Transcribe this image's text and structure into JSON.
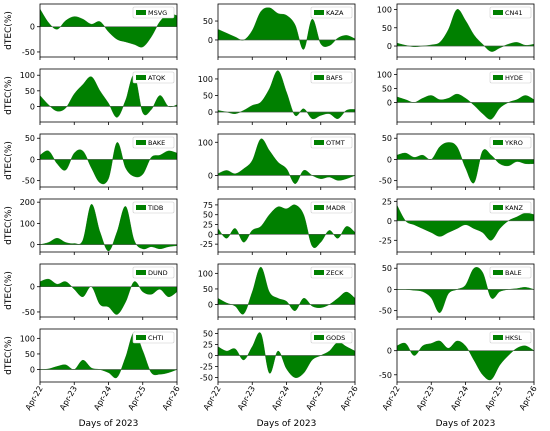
{
  "figure": {
    "xlabel": "Days of 2023",
    "ylabel": "dTEC(%)",
    "x_tick_labels": [
      "Apr-22",
      "Apr-23",
      "Apr-24",
      "Apr-25",
      "Apr-26"
    ],
    "fill_color": "#008000"
  },
  "chart_data": [
    {
      "type": "area",
      "station": "MSVG",
      "xlim": [
        "2023-04-22",
        "2023-04-26"
      ],
      "ylim": [
        -60,
        45
      ],
      "yticks": [
        -50,
        0
      ],
      "x": [
        "2023-04-22",
        "2023-04-22 06:00",
        "2023-04-22 12:00",
        "2023-04-22 18:00",
        "2023-04-23",
        "2023-04-23 06:00",
        "2023-04-23 12:00",
        "2023-04-23 18:00",
        "2023-04-24",
        "2023-04-24 06:00",
        "2023-04-24 12:00",
        "2023-04-24 18:00",
        "2023-04-25",
        "2023-04-25 06:00",
        "2023-04-25 12:00",
        "2023-04-25 18:00",
        "2023-04-26"
      ],
      "y": [
        35,
        8,
        -5,
        12,
        20,
        15,
        5,
        10,
        -10,
        -25,
        -30,
        -35,
        -40,
        -20,
        10,
        25,
        22
      ]
    },
    {
      "type": "area",
      "station": "KAZA",
      "xlim": [
        "2023-04-22",
        "2023-04-26"
      ],
      "ylim": [
        -45,
        95
      ],
      "yticks": [
        0,
        50
      ],
      "x": [
        "2023-04-22",
        "2023-04-22 06:00",
        "2023-04-22 12:00",
        "2023-04-22 18:00",
        "2023-04-23",
        "2023-04-23 06:00",
        "2023-04-23 12:00",
        "2023-04-23 18:00",
        "2023-04-24",
        "2023-04-24 06:00",
        "2023-04-24 12:00",
        "2023-04-24 18:00",
        "2023-04-25",
        "2023-04-25 06:00",
        "2023-04-25 12:00",
        "2023-04-25 18:00",
        "2023-04-26"
      ],
      "y": [
        28,
        18,
        8,
        0,
        25,
        75,
        85,
        70,
        65,
        40,
        -25,
        55,
        -10,
        -15,
        5,
        12,
        3
      ]
    },
    {
      "type": "area",
      "station": "CN41",
      "xlim": [
        "2023-04-22",
        "2023-04-26"
      ],
      "ylim": [
        -30,
        115
      ],
      "yticks": [
        0,
        50,
        100
      ],
      "x": [
        "2023-04-22",
        "2023-04-22 06:00",
        "2023-04-22 12:00",
        "2023-04-22 18:00",
        "2023-04-23",
        "2023-04-23 06:00",
        "2023-04-23 12:00",
        "2023-04-23 18:00",
        "2023-04-24",
        "2023-04-24 06:00",
        "2023-04-24 12:00",
        "2023-04-24 18:00",
        "2023-04-25",
        "2023-04-25 06:00",
        "2023-04-25 12:00",
        "2023-04-25 18:00",
        "2023-04-26"
      ],
      "y": [
        8,
        2,
        -2,
        0,
        3,
        10,
        45,
        100,
        70,
        30,
        5,
        -15,
        -5,
        5,
        10,
        2,
        5
      ]
    },
    {
      "type": "area",
      "station": "ATQK",
      "xlim": [
        "2023-04-22",
        "2023-04-26"
      ],
      "ylim": [
        -50,
        120
      ],
      "yticks": [
        0,
        50,
        100
      ],
      "x": [
        "2023-04-22",
        "2023-04-22 06:00",
        "2023-04-22 12:00",
        "2023-04-22 18:00",
        "2023-04-23",
        "2023-04-23 06:00",
        "2023-04-23 12:00",
        "2023-04-23 18:00",
        "2023-04-24",
        "2023-04-24 06:00",
        "2023-04-24 12:00",
        "2023-04-24 18:00",
        "2023-04-25",
        "2023-04-25 06:00",
        "2023-04-25 12:00",
        "2023-04-25 18:00",
        "2023-04-26"
      ],
      "y": [
        35,
        5,
        -15,
        -5,
        40,
        70,
        95,
        50,
        10,
        -35,
        20,
        100,
        -20,
        -10,
        35,
        0,
        5
      ]
    },
    {
      "type": "area",
      "station": "BAFS",
      "xlim": [
        "2023-04-22",
        "2023-04-26"
      ],
      "ylim": [
        -30,
        130
      ],
      "yticks": [
        0,
        50,
        100
      ],
      "x": [
        "2023-04-22",
        "2023-04-22 06:00",
        "2023-04-22 12:00",
        "2023-04-22 18:00",
        "2023-04-23",
        "2023-04-23 06:00",
        "2023-04-23 12:00",
        "2023-04-23 18:00",
        "2023-04-24",
        "2023-04-24 06:00",
        "2023-04-24 12:00",
        "2023-04-24 18:00",
        "2023-04-25",
        "2023-04-25 06:00",
        "2023-04-25 12:00",
        "2023-04-25 18:00",
        "2023-04-26"
      ],
      "y": [
        5,
        0,
        -5,
        5,
        20,
        30,
        70,
        125,
        60,
        -10,
        10,
        -20,
        -10,
        -5,
        -20,
        5,
        8
      ]
    },
    {
      "type": "area",
      "station": "HYDE",
      "xlim": [
        "2023-04-22",
        "2023-04-26"
      ],
      "ylim": [
        -70,
        120
      ],
      "yticks": [
        0,
        50,
        100
      ],
      "x": [
        "2023-04-22",
        "2023-04-22 06:00",
        "2023-04-22 12:00",
        "2023-04-22 18:00",
        "2023-04-23",
        "2023-04-23 06:00",
        "2023-04-23 12:00",
        "2023-04-23 18:00",
        "2023-04-24",
        "2023-04-24 06:00",
        "2023-04-24 12:00",
        "2023-04-24 18:00",
        "2023-04-25",
        "2023-04-25 06:00",
        "2023-04-25 12:00",
        "2023-04-25 18:00",
        "2023-04-26"
      ],
      "y": [
        20,
        10,
        0,
        15,
        25,
        10,
        15,
        30,
        15,
        -10,
        -40,
        -60,
        -20,
        0,
        10,
        25,
        10
      ]
    },
    {
      "type": "area",
      "station": "BAKE",
      "xlim": [
        "2023-04-22",
        "2023-04-26"
      ],
      "ylim": [
        -65,
        60
      ],
      "yticks": [
        -50,
        0,
        50
      ],
      "x": [
        "2023-04-22",
        "2023-04-22 06:00",
        "2023-04-22 12:00",
        "2023-04-22 18:00",
        "2023-04-23",
        "2023-04-23 06:00",
        "2023-04-23 12:00",
        "2023-04-23 18:00",
        "2023-04-24",
        "2023-04-24 06:00",
        "2023-04-24 12:00",
        "2023-04-24 18:00",
        "2023-04-25",
        "2023-04-25 06:00",
        "2023-04-25 12:00",
        "2023-04-25 18:00",
        "2023-04-26"
      ],
      "y": [
        10,
        20,
        -10,
        -25,
        15,
        20,
        -20,
        -55,
        -45,
        40,
        -20,
        -40,
        -35,
        5,
        10,
        20,
        15
      ]
    },
    {
      "type": "area",
      "station": "OTMT",
      "xlim": [
        "2023-04-22",
        "2023-04-26"
      ],
      "ylim": [
        -35,
        125
      ],
      "yticks": [
        0,
        100
      ],
      "x": [
        "2023-04-22",
        "2023-04-22 06:00",
        "2023-04-22 12:00",
        "2023-04-22 18:00",
        "2023-04-23",
        "2023-04-23 06:00",
        "2023-04-23 12:00",
        "2023-04-23 18:00",
        "2023-04-24",
        "2023-04-24 06:00",
        "2023-04-24 12:00",
        "2023-04-24 18:00",
        "2023-04-25",
        "2023-04-25 06:00",
        "2023-04-25 12:00",
        "2023-04-25 18:00",
        "2023-04-26"
      ],
      "y": [
        5,
        15,
        5,
        20,
        45,
        110,
        75,
        40,
        20,
        -25,
        15,
        0,
        -10,
        -5,
        -15,
        -10,
        0
      ]
    },
    {
      "type": "area",
      "station": "YKRO",
      "xlim": [
        "2023-04-22",
        "2023-04-26"
      ],
      "ylim": [
        -65,
        60
      ],
      "yticks": [
        -50,
        0,
        50
      ],
      "x": [
        "2023-04-22",
        "2023-04-22 06:00",
        "2023-04-22 12:00",
        "2023-04-22 18:00",
        "2023-04-23",
        "2023-04-23 06:00",
        "2023-04-23 12:00",
        "2023-04-23 18:00",
        "2023-04-24",
        "2023-04-24 06:00",
        "2023-04-24 12:00",
        "2023-04-24 18:00",
        "2023-04-25",
        "2023-04-25 06:00",
        "2023-04-25 12:00",
        "2023-04-25 18:00",
        "2023-04-26"
      ],
      "y": [
        10,
        15,
        5,
        10,
        0,
        30,
        40,
        30,
        -20,
        -55,
        20,
        10,
        -10,
        -15,
        -5,
        -10,
        -10
      ]
    },
    {
      "type": "area",
      "station": "TIDB",
      "xlim": [
        "2023-04-22",
        "2023-04-26"
      ],
      "ylim": [
        -35,
        215
      ],
      "yticks": [
        0,
        100,
        200
      ],
      "x": [
        "2023-04-22",
        "2023-04-22 06:00",
        "2023-04-22 12:00",
        "2023-04-22 18:00",
        "2023-04-23",
        "2023-04-23 06:00",
        "2023-04-23 12:00",
        "2023-04-23 18:00",
        "2023-04-24",
        "2023-04-24 06:00",
        "2023-04-24 12:00",
        "2023-04-24 18:00",
        "2023-04-25",
        "2023-04-25 06:00",
        "2023-04-25 12:00",
        "2023-04-25 18:00",
        "2023-04-26"
      ],
      "y": [
        0,
        10,
        30,
        10,
        5,
        20,
        190,
        60,
        -30,
        60,
        180,
        20,
        -20,
        -10,
        -20,
        -10,
        -5
      ]
    },
    {
      "type": "area",
      "station": "MADR",
      "xlim": [
        "2023-04-22",
        "2023-04-26"
      ],
      "ylim": [
        -45,
        90
      ],
      "yticks": [
        -25,
        0,
        25,
        50,
        75
      ],
      "x": [
        "2023-04-22",
        "2023-04-22 06:00",
        "2023-04-22 12:00",
        "2023-04-22 18:00",
        "2023-04-23",
        "2023-04-23 06:00",
        "2023-04-23 12:00",
        "2023-04-23 18:00",
        "2023-04-24",
        "2023-04-24 06:00",
        "2023-04-24 12:00",
        "2023-04-24 18:00",
        "2023-04-25",
        "2023-04-25 06:00",
        "2023-04-25 12:00",
        "2023-04-25 18:00",
        "2023-04-26"
      ],
      "y": [
        15,
        -10,
        15,
        -20,
        10,
        20,
        50,
        70,
        65,
        75,
        50,
        -30,
        -20,
        10,
        -10,
        20,
        5
      ]
    },
    {
      "type": "area",
      "station": "KANZ",
      "xlim": [
        "2023-04-22",
        "2023-04-26"
      ],
      "ylim": [
        -40,
        28
      ],
      "yticks": [
        -25,
        0,
        25
      ],
      "x": [
        "2023-04-22",
        "2023-04-22 06:00",
        "2023-04-22 12:00",
        "2023-04-22 18:00",
        "2023-04-23",
        "2023-04-23 06:00",
        "2023-04-23 12:00",
        "2023-04-23 18:00",
        "2023-04-24",
        "2023-04-24 06:00",
        "2023-04-24 12:00",
        "2023-04-24 18:00",
        "2023-04-25",
        "2023-04-25 06:00",
        "2023-04-25 12:00",
        "2023-04-25 18:00",
        "2023-04-26"
      ],
      "y": [
        20,
        0,
        -5,
        -10,
        -15,
        -20,
        -15,
        -10,
        -5,
        -10,
        -15,
        -25,
        -10,
        0,
        5,
        10,
        8
      ]
    },
    {
      "type": "area",
      "station": "DUND",
      "xlim": [
        "2023-04-22",
        "2023-04-26"
      ],
      "ylim": [
        -60,
        45
      ],
      "yticks": [
        -50,
        0
      ],
      "x": [
        "2023-04-22",
        "2023-04-22 06:00",
        "2023-04-22 12:00",
        "2023-04-22 18:00",
        "2023-04-23",
        "2023-04-23 06:00",
        "2023-04-23 12:00",
        "2023-04-23 18:00",
        "2023-04-24",
        "2023-04-24 06:00",
        "2023-04-24 12:00",
        "2023-04-24 18:00",
        "2023-04-25",
        "2023-04-25 06:00",
        "2023-04-25 12:00",
        "2023-04-25 18:00",
        "2023-04-26"
      ],
      "y": [
        10,
        15,
        5,
        10,
        -5,
        -20,
        0,
        -35,
        -40,
        -55,
        -30,
        10,
        -10,
        -15,
        -5,
        -20,
        -10
      ]
    },
    {
      "type": "area",
      "station": "ZECK",
      "xlim": [
        "2023-04-22",
        "2023-04-26"
      ],
      "ylim": [
        -40,
        130
      ],
      "yticks": [
        0,
        50,
        100
      ],
      "x": [
        "2023-04-22",
        "2023-04-22 06:00",
        "2023-04-22 12:00",
        "2023-04-22 18:00",
        "2023-04-23",
        "2023-04-23 06:00",
        "2023-04-23 12:00",
        "2023-04-23 18:00",
        "2023-04-24",
        "2023-04-24 06:00",
        "2023-04-24 12:00",
        "2023-04-24 18:00",
        "2023-04-25",
        "2023-04-25 06:00",
        "2023-04-25 12:00",
        "2023-04-25 18:00",
        "2023-04-26"
      ],
      "y": [
        20,
        5,
        -5,
        -30,
        40,
        120,
        40,
        20,
        10,
        -20,
        20,
        -5,
        -10,
        0,
        20,
        40,
        20
      ]
    },
    {
      "type": "area",
      "station": "BALE",
      "xlim": [
        "2023-04-22",
        "2023-04-26"
      ],
      "ylim": [
        -65,
        60
      ],
      "yticks": [
        -50,
        0,
        50
      ],
      "x": [
        "2023-04-22",
        "2023-04-22 06:00",
        "2023-04-22 12:00",
        "2023-04-22 18:00",
        "2023-04-23",
        "2023-04-23 06:00",
        "2023-04-23 12:00",
        "2023-04-23 18:00",
        "2023-04-24",
        "2023-04-24 06:00",
        "2023-04-24 12:00",
        "2023-04-24 18:00",
        "2023-04-25",
        "2023-04-25 06:00",
        "2023-04-25 12:00",
        "2023-04-25 18:00",
        "2023-04-26"
      ],
      "y": [
        0,
        0,
        -2,
        -5,
        -20,
        -55,
        -10,
        0,
        10,
        50,
        40,
        -20,
        -5,
        0,
        2,
        5,
        0
      ]
    },
    {
      "type": "area",
      "station": "CHTI",
      "xlim": [
        "2023-04-22",
        "2023-04-26"
      ],
      "ylim": [
        -40,
        130
      ],
      "yticks": [
        0,
        50,
        100
      ],
      "x": [
        "2023-04-22",
        "2023-04-22 06:00",
        "2023-04-22 12:00",
        "2023-04-22 18:00",
        "2023-04-23",
        "2023-04-23 06:00",
        "2023-04-23 12:00",
        "2023-04-23 18:00",
        "2023-04-24",
        "2023-04-24 06:00",
        "2023-04-24 12:00",
        "2023-04-24 18:00",
        "2023-04-25",
        "2023-04-25 06:00",
        "2023-04-25 12:00",
        "2023-04-25 18:00",
        "2023-04-26"
      ],
      "y": [
        0,
        2,
        10,
        15,
        0,
        30,
        5,
        0,
        -10,
        -25,
        40,
        120,
        60,
        -10,
        -15,
        -10,
        0
      ]
    },
    {
      "type": "area",
      "station": "GODS",
      "xlim": [
        "2023-04-22",
        "2023-04-26"
      ],
      "ylim": [
        -60,
        60
      ],
      "yticks": [
        -50,
        -25,
        0,
        25,
        50
      ],
      "x": [
        "2023-04-22",
        "2023-04-22 06:00",
        "2023-04-22 12:00",
        "2023-04-22 18:00",
        "2023-04-23",
        "2023-04-23 06:00",
        "2023-04-23 12:00",
        "2023-04-23 18:00",
        "2023-04-24",
        "2023-04-24 06:00",
        "2023-04-24 12:00",
        "2023-04-24 18:00",
        "2023-04-25",
        "2023-04-25 06:00",
        "2023-04-25 12:00",
        "2023-04-25 18:00",
        "2023-04-26"
      ],
      "y": [
        20,
        10,
        15,
        -10,
        20,
        50,
        -40,
        10,
        -30,
        -50,
        -40,
        -10,
        0,
        10,
        30,
        20,
        10
      ]
    },
    {
      "type": "area",
      "station": "HKSL",
      "xlim": [
        "2023-04-22",
        "2023-04-26"
      ],
      "ylim": [
        -65,
        45
      ],
      "yticks": [
        -50,
        0
      ],
      "x": [
        "2023-04-22",
        "2023-04-22 06:00",
        "2023-04-22 12:00",
        "2023-04-22 18:00",
        "2023-04-23",
        "2023-04-23 06:00",
        "2023-04-23 12:00",
        "2023-04-23 18:00",
        "2023-04-24",
        "2023-04-24 06:00",
        "2023-04-24 12:00",
        "2023-04-24 18:00",
        "2023-04-25",
        "2023-04-25 06:00",
        "2023-04-25 12:00",
        "2023-04-25 18:00",
        "2023-04-26"
      ],
      "y": [
        10,
        15,
        -10,
        10,
        15,
        20,
        5,
        20,
        10,
        -20,
        -50,
        -60,
        -30,
        -10,
        5,
        10,
        0
      ]
    }
  ]
}
